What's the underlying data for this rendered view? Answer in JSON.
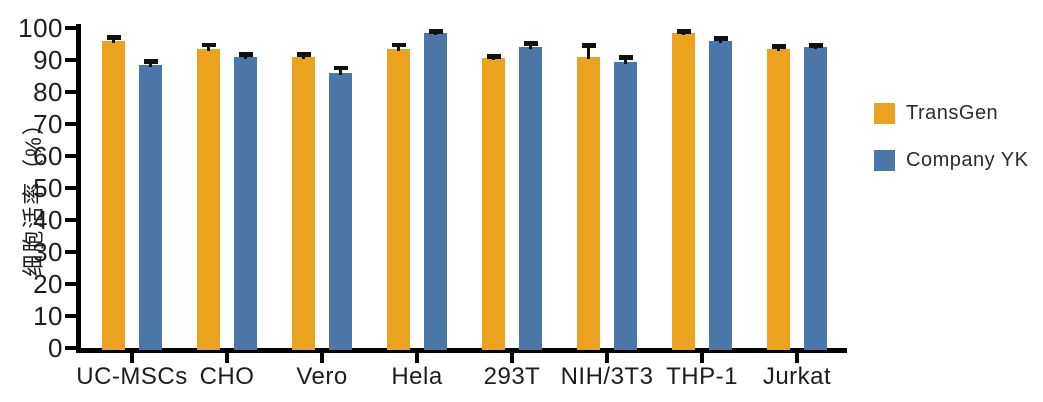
{
  "chart_data": {
    "type": "bar",
    "title": "",
    "xlabel": "",
    "ylabel": "细胞活率（%）",
    "ylim": [
      0,
      100
    ],
    "ytick_step": 10,
    "yticks": [
      0,
      10,
      20,
      30,
      40,
      50,
      60,
      70,
      80,
      90,
      100
    ],
    "grid": false,
    "legend_position": "right-outside",
    "categories": [
      "UC-MSCs",
      "CHO",
      "Vero",
      "Hela",
      "293T",
      "NIH/3T3",
      "THP-1",
      "Jurkat"
    ],
    "series": [
      {
        "name": "TransGen",
        "color": "#EAA21F",
        "values": [
          96,
          93.5,
          91,
          93.5,
          90.5,
          91,
          98.5,
          93.5
        ],
        "errors": [
          1.0,
          1.2,
          0.6,
          1.2,
          0.6,
          3.5,
          0.5,
          0.8
        ]
      },
      {
        "name": "Company YK",
        "color": "#4A76A8",
        "values": [
          88.5,
          91,
          86,
          98.5,
          94,
          89.5,
          96,
          94
        ],
        "errors": [
          1.0,
          0.8,
          1.5,
          0.5,
          1.2,
          1.2,
          0.8,
          0.5
        ]
      }
    ],
    "error_bar_color": "#111111",
    "axis_color": "#000000",
    "text_color": "#1d1d1f"
  }
}
